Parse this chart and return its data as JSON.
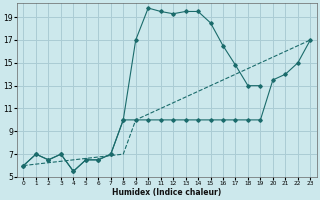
{
  "background_color": "#cce8ec",
  "grid_color": "#aaccd4",
  "line_color": "#1a6b6b",
  "xlabel": "Humidex (Indice chaleur)",
  "xlim": [
    -0.5,
    23.5
  ],
  "ylim": [
    5,
    20.2
  ],
  "yticks": [
    5,
    7,
    9,
    11,
    13,
    15,
    17,
    19
  ],
  "xticks": [
    0,
    1,
    2,
    3,
    4,
    5,
    6,
    7,
    8,
    9,
    10,
    11,
    12,
    13,
    14,
    15,
    16,
    17,
    18,
    19,
    20,
    21,
    22,
    23
  ],
  "series1_x": [
    0,
    1,
    2,
    3,
    4,
    5,
    6,
    7,
    8,
    9,
    10,
    11,
    12,
    13,
    14,
    15,
    16,
    17,
    18,
    19
  ],
  "series1_y": [
    6,
    7,
    6.5,
    7,
    5.5,
    6.5,
    6.5,
    7,
    10,
    17,
    19.8,
    19.5,
    19.3,
    19.5,
    19.5,
    18.5,
    16.5,
    14.8,
    13,
    13
  ],
  "series2_x": [
    0,
    1,
    2,
    3,
    4,
    5,
    6,
    7,
    8,
    9,
    10,
    11,
    12,
    13,
    14,
    15,
    16,
    17,
    18,
    19,
    20,
    21,
    22,
    23
  ],
  "series2_y": [
    6,
    7,
    6.5,
    7,
    5.5,
    6.5,
    6.5,
    7,
    10,
    10,
    10,
    10,
    10,
    10,
    10,
    10,
    10,
    10,
    10,
    10,
    13.5,
    14,
    15,
    17
  ],
  "series3_x": [
    0,
    8,
    9,
    23
  ],
  "series3_y": [
    6,
    7,
    10,
    17
  ]
}
